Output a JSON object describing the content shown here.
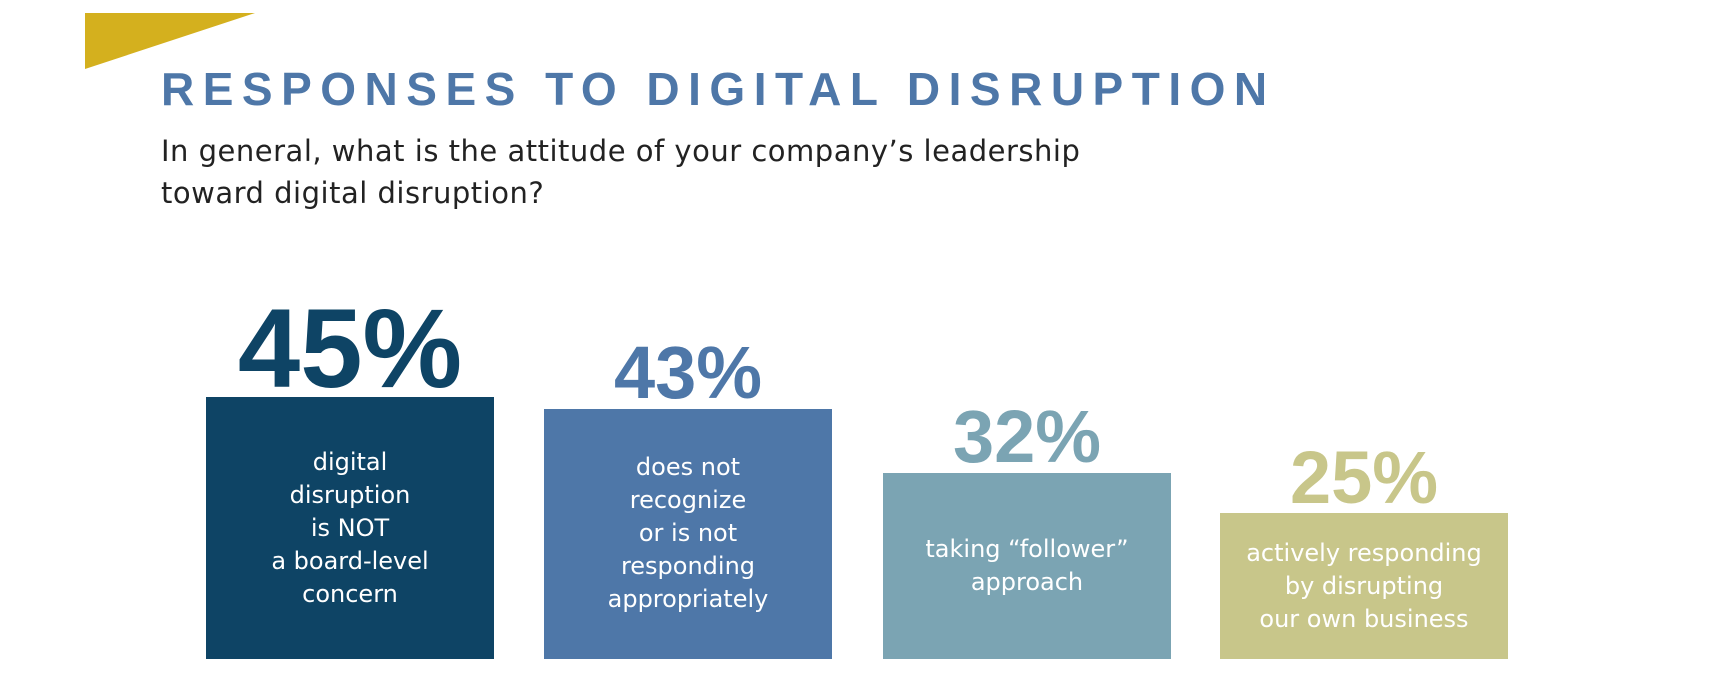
{
  "chart_data": {
    "type": "bar",
    "title": "RESPONSES TO DIGITAL DISRUPTION",
    "subtitle": "In general, what is the attitude of your company’s leadership\ntoward digital disruption?",
    "categories": [
      "digital\ndisruption\nis NOT\na board-level\nconcern",
      "does not\nrecognize\nor is not\nresponding\nappropriately",
      "taking “follower”\napproach",
      "actively responding\nby disrupting\nour own business"
    ],
    "values": [
      45,
      43,
      32,
      25
    ],
    "value_labels": [
      "45%",
      "43%",
      "32%",
      "25%"
    ],
    "colors": [
      "#0e4465",
      "#4e77a8",
      "#7ba4b3",
      "#c8c68a"
    ]
  }
}
